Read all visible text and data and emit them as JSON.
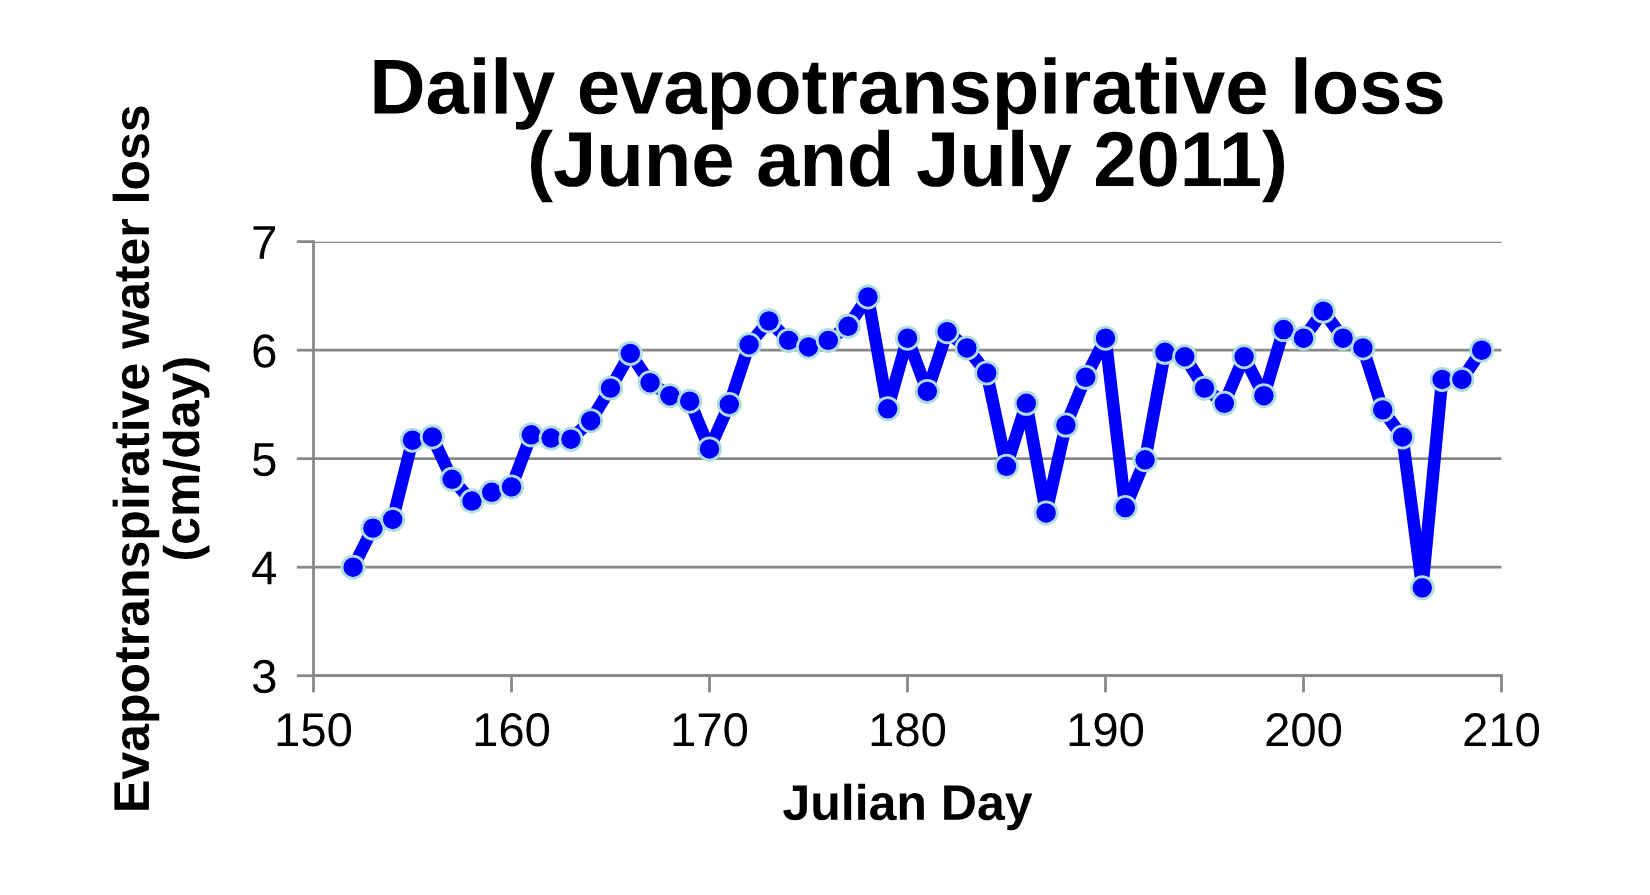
{
  "chart_data": {
    "type": "line",
    "title": "Daily evapotranspirative loss\n(June and July 2011)",
    "xlabel": "Julian Day",
    "ylabel": "Evapotranspirative water loss\n(cm/day)",
    "x": [
      152,
      153,
      154,
      155,
      156,
      157,
      158,
      159,
      160,
      161,
      162,
      163,
      164,
      165,
      166,
      167,
      168,
      169,
      170,
      171,
      172,
      173,
      174,
      175,
      176,
      177,
      178,
      179,
      180,
      181,
      182,
      183,
      184,
      185,
      186,
      187,
      188,
      189,
      190,
      191,
      192,
      193,
      194,
      195,
      196,
      197,
      198,
      199,
      200,
      201,
      202,
      203,
      204,
      205,
      206,
      207,
      208,
      209
    ],
    "series": [
      {
        "color": "#0000ff",
        "values": [
          4.0,
          4.36,
          4.44,
          5.17,
          5.2,
          4.81,
          4.61,
          4.69,
          4.74,
          5.22,
          5.19,
          5.18,
          5.35,
          5.65,
          5.97,
          5.7,
          5.58,
          5.53,
          5.09,
          5.5,
          6.05,
          6.27,
          6.09,
          6.03,
          6.09,
          6.22,
          6.49,
          5.46,
          6.11,
          5.62,
          6.17,
          6.02,
          5.79,
          4.93,
          5.51,
          4.5,
          5.31,
          5.75,
          6.11,
          4.55,
          4.99,
          5.98,
          5.94,
          5.65,
          5.51,
          5.94,
          5.58,
          6.19,
          6.11,
          6.36,
          6.11,
          6.02,
          5.45,
          5.2,
          3.81,
          5.73,
          5.73,
          6.0
        ]
      }
    ],
    "xlim": [
      150,
      210
    ],
    "xticks": [
      150,
      160,
      170,
      180,
      190,
      200,
      210
    ],
    "ylim": [
      3,
      7
    ],
    "yticks": [
      3,
      4,
      5,
      6,
      7
    ],
    "grid": "y",
    "marker": "circle",
    "line_style": "solid",
    "legend": false
  }
}
